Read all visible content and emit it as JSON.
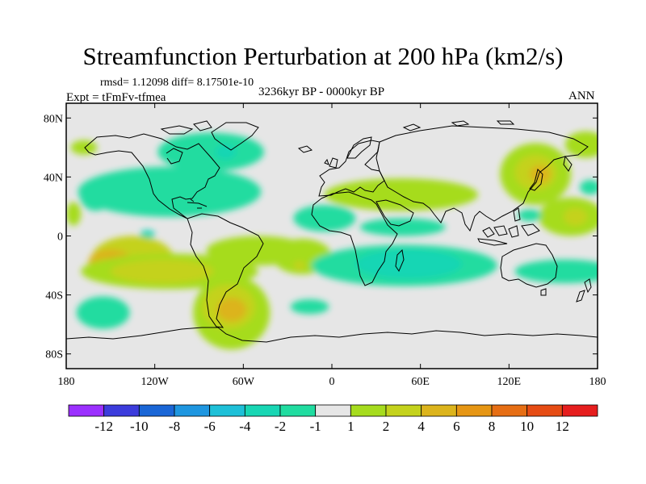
{
  "colors": {
    "ocean": "#e6e6e6",
    "coast": "#000000",
    "frame": "#000000"
  },
  "chart_data": {
    "type": "heatmap",
    "title": "Streamfunction Perturbation at 200 hPa (km2/s)",
    "stats_text": "rmsd= 1.12098 diff= 8.17501e-10",
    "period_text": "3236kyr BP - 0000kyr BP",
    "experiment_text": "Expt = tFmFv-tfmea",
    "season_text": "ANN",
    "xlim": [
      -180,
      180
    ],
    "ylim": [
      -90,
      90
    ],
    "x_ticks": [
      {
        "value": -180,
        "label": "180"
      },
      {
        "value": -120,
        "label": "120W"
      },
      {
        "value": -60,
        "label": "60W"
      },
      {
        "value": 0,
        "label": "0"
      },
      {
        "value": 60,
        "label": "60E"
      },
      {
        "value": 120,
        "label": "120E"
      },
      {
        "value": 180,
        "label": "180"
      }
    ],
    "y_ticks": [
      {
        "value": 80,
        "label": "80N"
      },
      {
        "value": 40,
        "label": "40N"
      },
      {
        "value": 0,
        "label": "0"
      },
      {
        "value": -40,
        "label": "40S"
      },
      {
        "value": -80,
        "label": "80S"
      }
    ],
    "colorbar": {
      "levels": [
        "-12",
        "-10",
        "-8",
        "-6",
        "-4",
        "-2",
        "-1",
        "1",
        "2",
        "4",
        "6",
        "8",
        "10",
        "12"
      ],
      "colors": [
        "#9b30ff",
        "#3c3cdc",
        "#1a66d6",
        "#1e96e0",
        "#1ec0d8",
        "#18d6b4",
        "#20dca0",
        "#e6e6e6",
        "#a6dc1e",
        "#c4d21c",
        "#dcb41c",
        "#e69614",
        "#e66e14",
        "#e64c14",
        "#e61e1e"
      ]
    },
    "anomalies": [
      {
        "lon": -160,
        "lat": 28,
        "rlon": 11,
        "rlat": 11,
        "value": -1.5
      },
      {
        "lon": -155,
        "lat": 31,
        "rlon": 4,
        "rlat": 4,
        "value": -2.5
      },
      {
        "lon": -82,
        "lat": 57,
        "rlon": 36,
        "rlat": 13,
        "value": -1.5
      },
      {
        "lon": -72,
        "lat": 57,
        "rlon": 7,
        "rlat": 5,
        "value": -2.5
      },
      {
        "lon": -110,
        "lat": 30,
        "rlon": 62,
        "rlat": 17,
        "value": -1.5
      },
      {
        "lon": -118,
        "lat": 25,
        "rlon": 28,
        "rlat": 8,
        "value": -1.5
      },
      {
        "lon": -125,
        "lat": 1,
        "rlon": 5,
        "rlat": 3,
        "value": -2.5
      },
      {
        "lon": -168,
        "lat": 60,
        "rlon": 9,
        "rlat": 5,
        "value": 1.5
      },
      {
        "lon": -175,
        "lat": 15,
        "rlon": 5,
        "rlat": 8,
        "value": 1.5
      },
      {
        "lon": -135,
        "lat": -16,
        "rlon": 28,
        "rlat": 16,
        "value": 2.5
      },
      {
        "lon": -150,
        "lat": -18,
        "rlon": 15,
        "rlat": 9,
        "value": 4.5
      },
      {
        "lon": -148,
        "lat": -19,
        "rlon": 7,
        "rlat": 5,
        "value": 6.3
      },
      {
        "lon": -110,
        "lat": -24,
        "rlon": 60,
        "rlat": 12,
        "value": 1.5
      },
      {
        "lon": -115,
        "lat": -24,
        "rlon": 35,
        "rlat": 8,
        "value": 2.5
      },
      {
        "lon": -155,
        "lat": -52,
        "rlon": 18,
        "rlat": 11,
        "value": -1.5
      },
      {
        "lon": -50,
        "lat": -10,
        "rlon": 35,
        "rlat": 10,
        "value": 1.5
      },
      {
        "lon": -20,
        "lat": -14,
        "rlon": 20,
        "rlat": 12,
        "value": 1.5
      },
      {
        "lon": -22,
        "lat": -20,
        "rlon": 4,
        "rlat": 3,
        "value": 3.0
      },
      {
        "lon": -68,
        "lat": -52,
        "rlon": 26,
        "rlat": 25,
        "value": 1.5
      },
      {
        "lon": -70,
        "lat": -48,
        "rlon": 18,
        "rlat": 15,
        "value": 2.5
      },
      {
        "lon": -68,
        "lat": -50,
        "rlon": 10,
        "rlat": 8,
        "value": 4.5
      },
      {
        "lon": -5,
        "lat": 12,
        "rlon": 21,
        "rlat": 9,
        "value": -1.5
      },
      {
        "lon": -15,
        "lat": -48,
        "rlon": 13,
        "rlat": 5,
        "value": -1.5
      },
      {
        "lon": 49,
        "lat": -20,
        "rlon": 63,
        "rlat": 14,
        "value": -1.5
      },
      {
        "lon": 52,
        "lat": -19,
        "rlon": 36,
        "rlat": 10,
        "value": -2.5
      },
      {
        "lon": 47,
        "lat": 28,
        "rlon": 52,
        "rlat": 11,
        "value": 1.5
      },
      {
        "lon": 48,
        "lat": 6,
        "rlon": 29,
        "rlat": 6,
        "value": -1.5
      },
      {
        "lon": 138,
        "lat": 42,
        "rlon": 24,
        "rlat": 21,
        "value": 1.5
      },
      {
        "lon": 138,
        "lat": 43,
        "rlon": 14,
        "rlat": 12,
        "value": 2.5
      },
      {
        "lon": 141,
        "lat": 42,
        "rlon": 7,
        "rlat": 6,
        "value": 4.2
      },
      {
        "lon": 172,
        "lat": 62,
        "rlon": 14,
        "rlat": 9,
        "value": 1.5
      },
      {
        "lon": 162,
        "lat": 13,
        "rlon": 22,
        "rlat": 13,
        "value": 1.5
      },
      {
        "lon": 165,
        "lat": 13,
        "rlon": 8,
        "rlat": 6,
        "value": 3.0
      },
      {
        "lon": 134,
        "lat": 14,
        "rlon": 8,
        "rlat": 4,
        "value": -1.5
      },
      {
        "lon": 158,
        "lat": -24,
        "rlon": 34,
        "rlat": 8,
        "value": -1.5
      },
      {
        "lon": 175,
        "lat": 33,
        "rlon": 7,
        "rlat": 5,
        "value": -1.5
      }
    ]
  }
}
